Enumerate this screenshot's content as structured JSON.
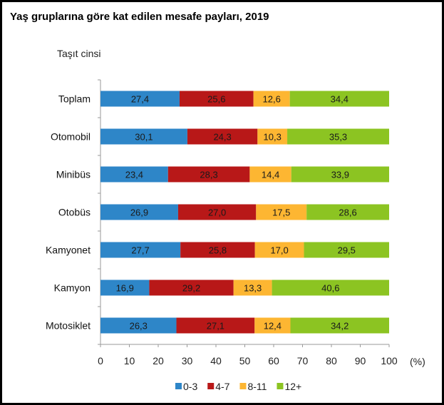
{
  "chart_data": {
    "type": "bar",
    "orientation": "horizontal",
    "stacked": true,
    "title": "Yaş gruplarına göre kat edilen mesafe payları, 2019",
    "ylabel": "Taşıt cinsi",
    "xunit": "(%)",
    "xlim": [
      0,
      100
    ],
    "xticks": [
      "0",
      "10",
      "20",
      "30",
      "40",
      "50",
      "60",
      "70",
      "80",
      "90",
      "100"
    ],
    "grid": false,
    "legend": "bottom",
    "categories": [
      "Toplam",
      "Otomobil",
      "Minibüs",
      "Otobüs",
      "Kamyonet",
      "Kamyon",
      "Motosiklet"
    ],
    "series": [
      {
        "name": "0-3",
        "color": "#2e86c8",
        "values": [
          27.4,
          30.1,
          23.4,
          26.9,
          27.7,
          16.9,
          26.3
        ],
        "labels": [
          "27,4",
          "30,1",
          "23,4",
          "26,9",
          "27,7",
          "16,9",
          "26,3"
        ]
      },
      {
        "name": "4-7",
        "color": "#b81818",
        "values": [
          25.6,
          24.3,
          28.3,
          27.0,
          25.8,
          29.2,
          27.1
        ],
        "labels": [
          "25,6",
          "24,3",
          "28,3",
          "27,0",
          "25,8",
          "29,2",
          "27,1"
        ]
      },
      {
        "name": "8-11",
        "color": "#fdb632",
        "values": [
          12.6,
          10.3,
          14.4,
          17.5,
          17.0,
          13.3,
          12.4
        ],
        "labels": [
          "12,6",
          "10,3",
          "14,4",
          "17,5",
          "17,0",
          "13,3",
          "12,4"
        ]
      },
      {
        "name": "12+",
        "color": "#8cc422",
        "values": [
          34.4,
          35.3,
          33.9,
          28.6,
          29.5,
          40.6,
          34.2
        ],
        "labels": [
          "34,4",
          "35,3",
          "33,9",
          "28,6",
          "29,5",
          "40,6",
          "34,2"
        ]
      }
    ]
  }
}
